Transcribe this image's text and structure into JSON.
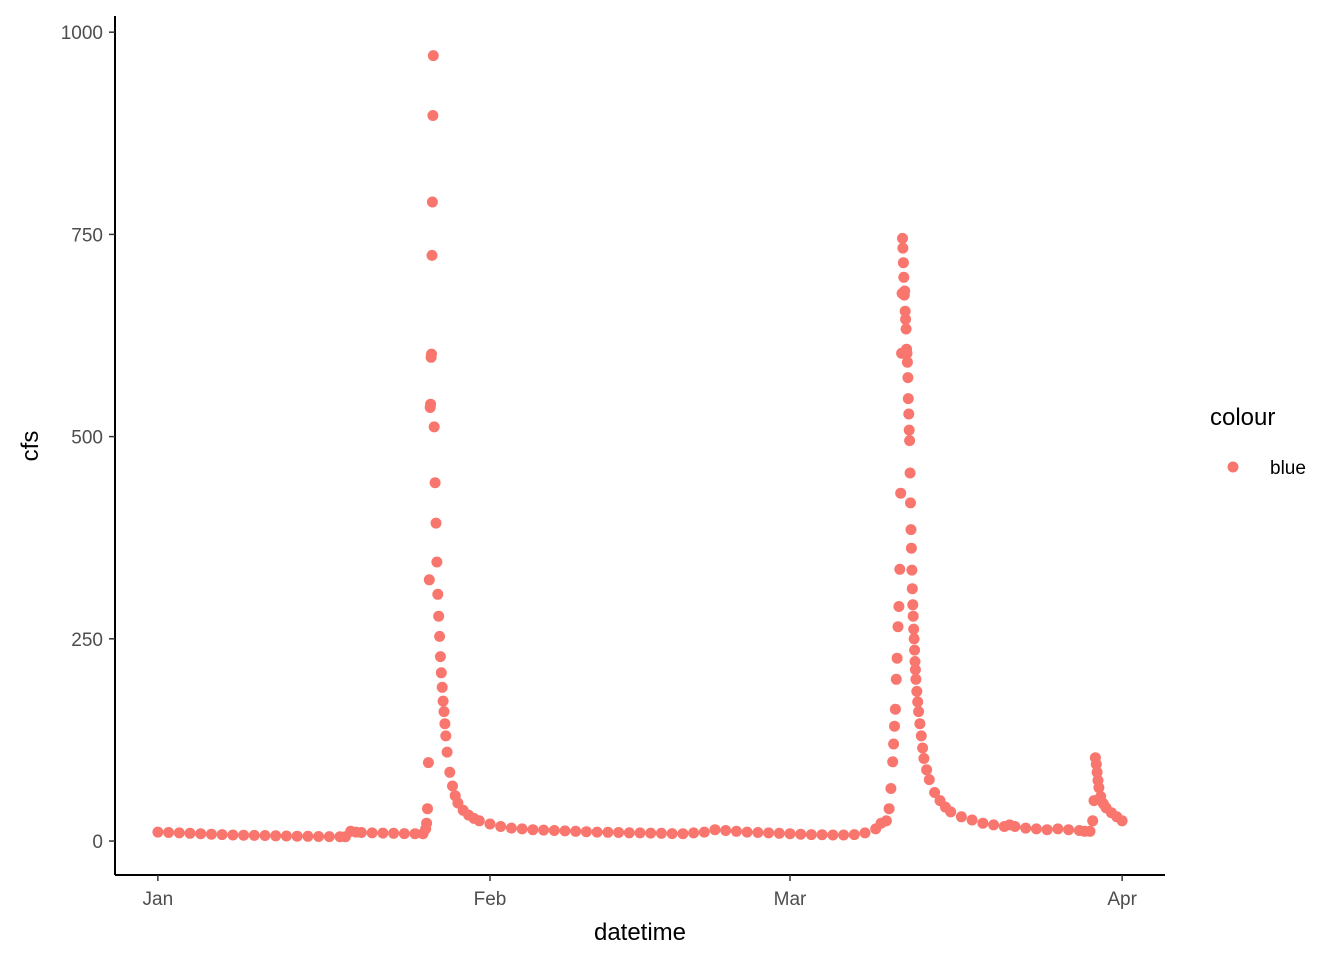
{
  "chart_data": {
    "type": "scatter",
    "title": "",
    "xlabel": "datetime",
    "ylabel": "cfs",
    "x_type": "date",
    "xlim": [
      "2018-12-28",
      "2019-04-05"
    ],
    "ylim": [
      -42,
      1020
    ],
    "x_ticks": [
      {
        "value": "2019-01-01",
        "label": "Jan"
      },
      {
        "value": "2019-02-01",
        "label": "Feb"
      },
      {
        "value": "2019-03-01",
        "label": "Mar"
      },
      {
        "value": "2019-04-01",
        "label": "Apr"
      }
    ],
    "y_ticks": [
      {
        "value": 0,
        "label": "0"
      },
      {
        "value": 250,
        "label": "250"
      },
      {
        "value": 500,
        "label": "500"
      },
      {
        "value": 750,
        "label": "750"
      },
      {
        "value": 1000,
        "label": "1000"
      }
    ],
    "grid": false,
    "legend": {
      "title": "colour",
      "position": "right",
      "entries": [
        {
          "label": "blue",
          "color": "#F8766D"
        }
      ]
    },
    "series": [
      {
        "name": "blue",
        "color": "#F8766D",
        "points": [
          {
            "x": "2019-01-01T00:00",
            "y": 11
          },
          {
            "x": "2019-01-02T00:00",
            "y": 10.5
          },
          {
            "x": "2019-01-03T00:00",
            "y": 10
          },
          {
            "x": "2019-01-04T00:00",
            "y": 9.5
          },
          {
            "x": "2019-01-05T00:00",
            "y": 9
          },
          {
            "x": "2019-01-06T00:00",
            "y": 8.5
          },
          {
            "x": "2019-01-07T00:00",
            "y": 8
          },
          {
            "x": "2019-01-08T00:00",
            "y": 7.5
          },
          {
            "x": "2019-01-09T00:00",
            "y": 7.2
          },
          {
            "x": "2019-01-10T00:00",
            "y": 7
          },
          {
            "x": "2019-01-11T00:00",
            "y": 6.8
          },
          {
            "x": "2019-01-12T00:00",
            "y": 6.5
          },
          {
            "x": "2019-01-13T00:00",
            "y": 6.2
          },
          {
            "x": "2019-01-14T00:00",
            "y": 6
          },
          {
            "x": "2019-01-15T00:00",
            "y": 5.8
          },
          {
            "x": "2019-01-16T00:00",
            "y": 5.6
          },
          {
            "x": "2019-01-17T00:00",
            "y": 5.5
          },
          {
            "x": "2019-01-18T00:00",
            "y": 5.4
          },
          {
            "x": "2019-01-18T12:00",
            "y": 5.3
          },
          {
            "x": "2019-01-19T00:00",
            "y": 12
          },
          {
            "x": "2019-01-19T12:00",
            "y": 11
          },
          {
            "x": "2019-01-20T00:00",
            "y": 10.5
          },
          {
            "x": "2019-01-21T00:00",
            "y": 10
          },
          {
            "x": "2019-01-22T00:00",
            "y": 9.8
          },
          {
            "x": "2019-01-23T00:00",
            "y": 9.5
          },
          {
            "x": "2019-01-24T00:00",
            "y": 9.2
          },
          {
            "x": "2019-01-25T00:00",
            "y": 9
          },
          {
            "x": "2019-01-25T18:00",
            "y": 9
          },
          {
            "x": "2019-01-26T00:00",
            "y": 15
          },
          {
            "x": "2019-01-26T02:00",
            "y": 22
          },
          {
            "x": "2019-01-26T04:00",
            "y": 40
          },
          {
            "x": "2019-01-26T06:00",
            "y": 97
          },
          {
            "x": "2019-01-26T08:00",
            "y": 323
          },
          {
            "x": "2019-01-26T10:00",
            "y": 536
          },
          {
            "x": "2019-01-26T11:00",
            "y": 540
          },
          {
            "x": "2019-01-26T12:00",
            "y": 598
          },
          {
            "x": "2019-01-26T13:00",
            "y": 602
          },
          {
            "x": "2019-01-26T14:00",
            "y": 724
          },
          {
            "x": "2019-01-26T15:00",
            "y": 790
          },
          {
            "x": "2019-01-26T16:00",
            "y": 897
          },
          {
            "x": "2019-01-26T17:00",
            "y": 971
          },
          {
            "x": "2019-01-26T19:00",
            "y": 512
          },
          {
            "x": "2019-01-26T21:00",
            "y": 443
          },
          {
            "x": "2019-01-26T23:00",
            "y": 393
          },
          {
            "x": "2019-01-27T01:00",
            "y": 345
          },
          {
            "x": "2019-01-27T03:00",
            "y": 305
          },
          {
            "x": "2019-01-27T05:00",
            "y": 278
          },
          {
            "x": "2019-01-27T07:00",
            "y": 253
          },
          {
            "x": "2019-01-27T09:00",
            "y": 228
          },
          {
            "x": "2019-01-27T11:00",
            "y": 208
          },
          {
            "x": "2019-01-27T13:00",
            "y": 190
          },
          {
            "x": "2019-01-27T15:00",
            "y": 173
          },
          {
            "x": "2019-01-27T17:00",
            "y": 160
          },
          {
            "x": "2019-01-27T19:00",
            "y": 145
          },
          {
            "x": "2019-01-27T21:00",
            "y": 130
          },
          {
            "x": "2019-01-28T00:00",
            "y": 110
          },
          {
            "x": "2019-01-28T06:00",
            "y": 85
          },
          {
            "x": "2019-01-28T12:00",
            "y": 68
          },
          {
            "x": "2019-01-28T18:00",
            "y": 56
          },
          {
            "x": "2019-01-29T00:00",
            "y": 47
          },
          {
            "x": "2019-01-29T12:00",
            "y": 38
          },
          {
            "x": "2019-01-30T00:00",
            "y": 32
          },
          {
            "x": "2019-01-30T12:00",
            "y": 28
          },
          {
            "x": "2019-01-31T00:00",
            "y": 25
          },
          {
            "x": "2019-02-01T00:00",
            "y": 21
          },
          {
            "x": "2019-02-02T00:00",
            "y": 18
          },
          {
            "x": "2019-02-03T00:00",
            "y": 16
          },
          {
            "x": "2019-02-04T00:00",
            "y": 15
          },
          {
            "x": "2019-02-05T00:00",
            "y": 14
          },
          {
            "x": "2019-02-06T00:00",
            "y": 13.5
          },
          {
            "x": "2019-02-07T00:00",
            "y": 13
          },
          {
            "x": "2019-02-08T00:00",
            "y": 12.5
          },
          {
            "x": "2019-02-09T00:00",
            "y": 12
          },
          {
            "x": "2019-02-10T00:00",
            "y": 11.5
          },
          {
            "x": "2019-02-11T00:00",
            "y": 11
          },
          {
            "x": "2019-02-12T00:00",
            "y": 10.8
          },
          {
            "x": "2019-02-13T00:00",
            "y": 10.5
          },
          {
            "x": "2019-02-14T00:00",
            "y": 10.2
          },
          {
            "x": "2019-02-15T00:00",
            "y": 10
          },
          {
            "x": "2019-02-16T00:00",
            "y": 9.8
          },
          {
            "x": "2019-02-17T00:00",
            "y": 9.5
          },
          {
            "x": "2019-02-18T00:00",
            "y": 9.2
          },
          {
            "x": "2019-02-19T00:00",
            "y": 9
          },
          {
            "x": "2019-02-20T00:00",
            "y": 10
          },
          {
            "x": "2019-02-21T00:00",
            "y": 11
          },
          {
            "x": "2019-02-22T00:00",
            "y": 14
          },
          {
            "x": "2019-02-23T00:00",
            "y": 13
          },
          {
            "x": "2019-02-24T00:00",
            "y": 12
          },
          {
            "x": "2019-02-25T00:00",
            "y": 11
          },
          {
            "x": "2019-02-26T00:00",
            "y": 10.5
          },
          {
            "x": "2019-02-27T00:00",
            "y": 10
          },
          {
            "x": "2019-02-28T00:00",
            "y": 9.5
          },
          {
            "x": "2019-03-01T00:00",
            "y": 9
          },
          {
            "x": "2019-03-02T00:00",
            "y": 8.5
          },
          {
            "x": "2019-03-03T00:00",
            "y": 8
          },
          {
            "x": "2019-03-04T00:00",
            "y": 7.8
          },
          {
            "x": "2019-03-05T00:00",
            "y": 7.5
          },
          {
            "x": "2019-03-06T00:00",
            "y": 7.5
          },
          {
            "x": "2019-03-07T00:00",
            "y": 8
          },
          {
            "x": "2019-03-08T00:00",
            "y": 10
          },
          {
            "x": "2019-03-09T00:00",
            "y": 15
          },
          {
            "x": "2019-03-09T12:00",
            "y": 22
          },
          {
            "x": "2019-03-10T00:00",
            "y": 25
          },
          {
            "x": "2019-03-10T06:00",
            "y": 40
          },
          {
            "x": "2019-03-10T10:00",
            "y": 65
          },
          {
            "x": "2019-03-10T14:00",
            "y": 98
          },
          {
            "x": "2019-03-10T16:00",
            "y": 120
          },
          {
            "x": "2019-03-10T18:00",
            "y": 142
          },
          {
            "x": "2019-03-10T20:00",
            "y": 163
          },
          {
            "x": "2019-03-10T22:00",
            "y": 200
          },
          {
            "x": "2019-03-11T00:00",
            "y": 226
          },
          {
            "x": "2019-03-11T02:00",
            "y": 265
          },
          {
            "x": "2019-03-11T04:00",
            "y": 290
          },
          {
            "x": "2019-03-11T06:00",
            "y": 336
          },
          {
            "x": "2019-03-11T08:00",
            "y": 430
          },
          {
            "x": "2019-03-11T10:00",
            "y": 603
          },
          {
            "x": "2019-03-11T11:00",
            "y": 677
          },
          {
            "x": "2019-03-11T12:00",
            "y": 745
          },
          {
            "x": "2019-03-11T13:00",
            "y": 733
          },
          {
            "x": "2019-03-11T14:00",
            "y": 715
          },
          {
            "x": "2019-03-11T15:00",
            "y": 697
          },
          {
            "x": "2019-03-11T16:00",
            "y": 675
          },
          {
            "x": "2019-03-11T17:00",
            "y": 680
          },
          {
            "x": "2019-03-11T18:00",
            "y": 655
          },
          {
            "x": "2019-03-11T19:00",
            "y": 645
          },
          {
            "x": "2019-03-11T20:00",
            "y": 633
          },
          {
            "x": "2019-03-11T21:00",
            "y": 608
          },
          {
            "x": "2019-03-11T22:00",
            "y": 603
          },
          {
            "x": "2019-03-11T23:00",
            "y": 592
          },
          {
            "x": "2019-03-12T00:00",
            "y": 573
          },
          {
            "x": "2019-03-12T01:00",
            "y": 547
          },
          {
            "x": "2019-03-12T02:00",
            "y": 528
          },
          {
            "x": "2019-03-12T03:00",
            "y": 508
          },
          {
            "x": "2019-03-12T04:00",
            "y": 495
          },
          {
            "x": "2019-03-12T05:00",
            "y": 455
          },
          {
            "x": "2019-03-12T06:00",
            "y": 418
          },
          {
            "x": "2019-03-12T07:00",
            "y": 385
          },
          {
            "x": "2019-03-12T08:00",
            "y": 362
          },
          {
            "x": "2019-03-12T09:00",
            "y": 335
          },
          {
            "x": "2019-03-12T10:00",
            "y": 312
          },
          {
            "x": "2019-03-12T11:00",
            "y": 292
          },
          {
            "x": "2019-03-12T12:00",
            "y": 278
          },
          {
            "x": "2019-03-12T13:00",
            "y": 262
          },
          {
            "x": "2019-03-12T14:00",
            "y": 250
          },
          {
            "x": "2019-03-12T15:00",
            "y": 236
          },
          {
            "x": "2019-03-12T16:00",
            "y": 222
          },
          {
            "x": "2019-03-12T17:00",
            "y": 212
          },
          {
            "x": "2019-03-12T18:00",
            "y": 200
          },
          {
            "x": "2019-03-12T20:00",
            "y": 185
          },
          {
            "x": "2019-03-12T22:00",
            "y": 172
          },
          {
            "x": "2019-03-13T00:00",
            "y": 160
          },
          {
            "x": "2019-03-13T03:00",
            "y": 145
          },
          {
            "x": "2019-03-13T06:00",
            "y": 130
          },
          {
            "x": "2019-03-13T09:00",
            "y": 115
          },
          {
            "x": "2019-03-13T12:00",
            "y": 102
          },
          {
            "x": "2019-03-13T18:00",
            "y": 88
          },
          {
            "x": "2019-03-14T00:00",
            "y": 76
          },
          {
            "x": "2019-03-14T12:00",
            "y": 60
          },
          {
            "x": "2019-03-15T00:00",
            "y": 50
          },
          {
            "x": "2019-03-15T12:00",
            "y": 42
          },
          {
            "x": "2019-03-16T00:00",
            "y": 36
          },
          {
            "x": "2019-03-17T00:00",
            "y": 30
          },
          {
            "x": "2019-03-18T00:00",
            "y": 26
          },
          {
            "x": "2019-03-19T00:00",
            "y": 22
          },
          {
            "x": "2019-03-20T00:00",
            "y": 20
          },
          {
            "x": "2019-03-21T00:00",
            "y": 18
          },
          {
            "x": "2019-03-21T12:00",
            "y": 20
          },
          {
            "x": "2019-03-22T00:00",
            "y": 18
          },
          {
            "x": "2019-03-23T00:00",
            "y": 16
          },
          {
            "x": "2019-03-24T00:00",
            "y": 15
          },
          {
            "x": "2019-03-25T00:00",
            "y": 14
          },
          {
            "x": "2019-03-26T00:00",
            "y": 15
          },
          {
            "x": "2019-03-27T00:00",
            "y": 14
          },
          {
            "x": "2019-03-28T00:00",
            "y": 13
          },
          {
            "x": "2019-03-28T12:00",
            "y": 12
          },
          {
            "x": "2019-03-29T00:00",
            "y": 12
          },
          {
            "x": "2019-03-29T06:00",
            "y": 25
          },
          {
            "x": "2019-03-29T09:00",
            "y": 50
          },
          {
            "x": "2019-03-29T12:00",
            "y": 103
          },
          {
            "x": "2019-03-29T14:00",
            "y": 95
          },
          {
            "x": "2019-03-29T16:00",
            "y": 85
          },
          {
            "x": "2019-03-29T18:00",
            "y": 75
          },
          {
            "x": "2019-03-29T20:00",
            "y": 66
          },
          {
            "x": "2019-03-30T00:00",
            "y": 55
          },
          {
            "x": "2019-03-30T06:00",
            "y": 46
          },
          {
            "x": "2019-03-30T12:00",
            "y": 41
          },
          {
            "x": "2019-03-31T00:00",
            "y": 35
          },
          {
            "x": "2019-03-31T12:00",
            "y": 30
          },
          {
            "x": "2019-04-01T00:00",
            "y": 25
          }
        ]
      }
    ]
  }
}
